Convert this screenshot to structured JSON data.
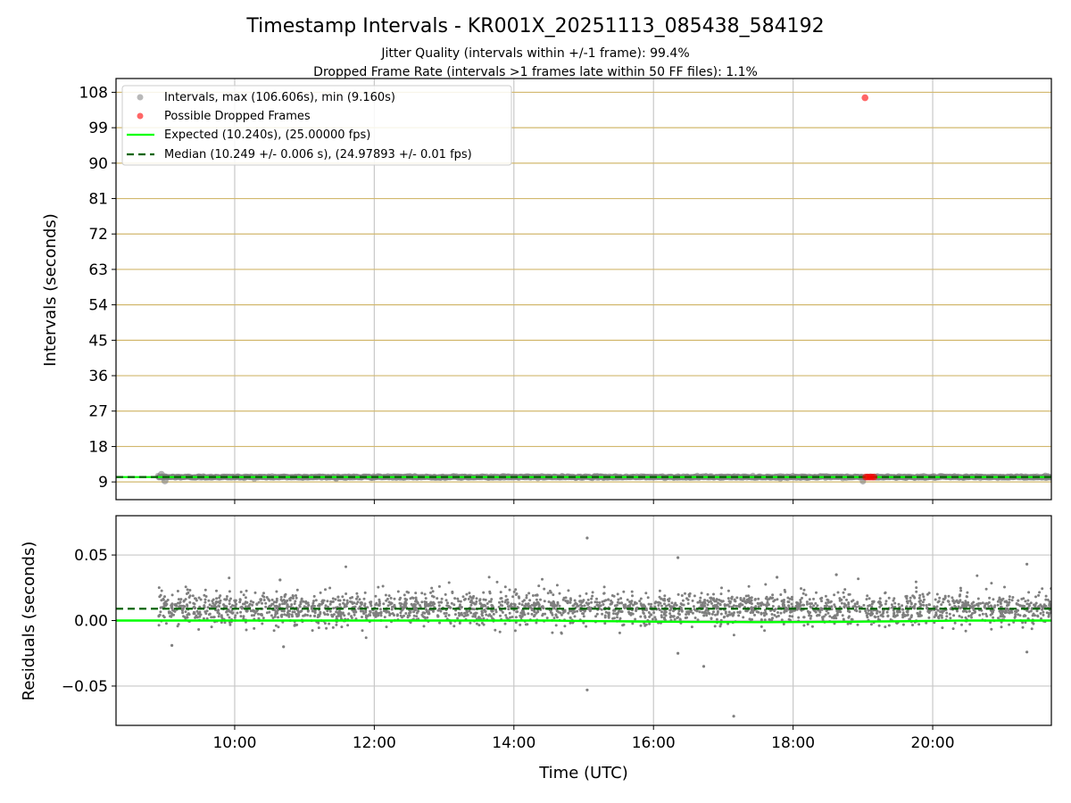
{
  "chart_data": {
    "title": "Timestamp Intervals - KR001X_20251113_085438_584192",
    "subtitle_lines": [
      "Jitter Quality (intervals within +/-1 frame): 99.4%",
      "Dropped Frame Rate (intervals >1 frames late within 50 FF files): 1.1%"
    ],
    "xlabel": "Time (UTC)",
    "x_tick_labels": [
      "10:00",
      "12:00",
      "14:00",
      "16:00",
      "18:00",
      "20:00"
    ],
    "x_tick_hours": [
      10,
      12,
      14,
      16,
      18,
      20
    ],
    "xlim_hours": [
      8.3,
      21.7
    ],
    "panels": [
      {
        "type": "scatter",
        "ylabel": "Intervals (seconds)",
        "ylim": [
          4.5,
          111.5
        ],
        "y_ticks": [
          9,
          18,
          27,
          36,
          45,
          54,
          63,
          72,
          81,
          90,
          99,
          108
        ],
        "y_tick_labels": [
          "9",
          "18",
          "27",
          "36",
          "45",
          "54",
          "63",
          "72",
          "81",
          "90",
          "99",
          "108"
        ],
        "horizontal_grid": "tan",
        "vertical_grid": true,
        "legend_placement": "top-left",
        "legend": [
          "Intervals, max (106.606s), min (9.160s)",
          "Possible Dropped Frames",
          "Expected (10.240s), (25.00000 fps)",
          "Median (10.249 +/- 0.006 s), (24.97893 +/- 0.01 fps)"
        ],
        "interval_range_hours": [
          8.9,
          21.7
        ],
        "interval_value_approx": 10.25,
        "max_interval": 106.606,
        "min_interval": 9.16,
        "expected": 10.24,
        "median": 10.249,
        "dropped_points": [
          {
            "x": 19.03,
            "y": 106.606
          },
          {
            "x": 19.04,
            "y": 10.24
          },
          {
            "x": 19.07,
            "y": 10.24
          },
          {
            "x": 19.1,
            "y": 10.24
          },
          {
            "x": 19.13,
            "y": 10.24
          },
          {
            "x": 19.16,
            "y": 10.24
          }
        ],
        "colors": {
          "intervals": "#7f7f7f",
          "dropped": "#ff0000",
          "expected": "#00ff00",
          "median": "#006400",
          "hgrid": "#d2b86e"
        }
      },
      {
        "type": "scatter",
        "ylabel": "Residuals (seconds)",
        "ylim": [
          -0.08,
          0.08
        ],
        "y_ticks": [
          0.05,
          0.0,
          -0.05
        ],
        "y_tick_labels": [
          "0.05",
          "0.00",
          "−0.05"
        ],
        "grid": true,
        "expected_residual": 0.0,
        "median_residual": 0.009,
        "residual_center": 0.009,
        "residual_spread": 0.006,
        "outliers": [
          {
            "x": 15.05,
            "y": 0.063
          },
          {
            "x": 15.05,
            "y": -0.053
          },
          {
            "x": 16.35,
            "y": 0.048
          },
          {
            "x": 16.35,
            "y": -0.025
          },
          {
            "x": 16.72,
            "y": -0.035
          },
          {
            "x": 17.15,
            "y": -0.073
          },
          {
            "x": 21.35,
            "y": 0.043
          },
          {
            "x": 21.35,
            "y": -0.024
          },
          {
            "x": 18.62,
            "y": 0.035
          },
          {
            "x": 17.77,
            "y": 0.033
          },
          {
            "x": 10.65,
            "y": 0.031
          },
          {
            "x": 9.1,
            "y": -0.019
          },
          {
            "x": 10.7,
            "y": -0.02
          }
        ],
        "colors": {
          "residuals": "#7f7f7f",
          "expected": "#00ff00",
          "median": "#006400",
          "grid": "#c8c8c8"
        }
      }
    ]
  }
}
